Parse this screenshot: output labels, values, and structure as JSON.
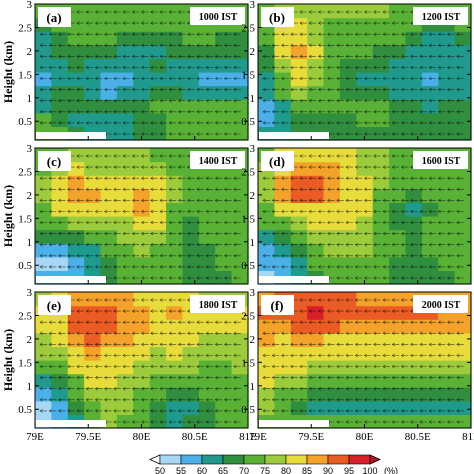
{
  "chart_data": [
    {
      "type": "heatmap",
      "panel": "(a)",
      "time": "1000 IST",
      "x_ticks": [
        "79E",
        "79.5E",
        "80E",
        "80.5E",
        "81E"
      ],
      "y_ticks": [
        "0.5",
        "1",
        "1.5",
        "2",
        "2.5",
        "3"
      ],
      "xlim": [
        79,
        81
      ],
      "ylim": [
        0.1,
        3
      ],
      "ylabel": "Height (km)",
      "rh_rows_bottom_to_top": [
        [
          70,
          70,
          68,
          62,
          60,
          62,
          66,
          68,
          70,
          72,
          72,
          70,
          70
        ],
        [
          70,
          68,
          64,
          62,
          60,
          62,
          66,
          68,
          70,
          72,
          72,
          70,
          70
        ],
        [
          64,
          66,
          68,
          68,
          66,
          66,
          68,
          70,
          72,
          70,
          70,
          72,
          72
        ],
        [
          60,
          66,
          66,
          62,
          58,
          60,
          64,
          66,
          66,
          64,
          62,
          60,
          60
        ],
        [
          58,
          62,
          64,
          60,
          58,
          58,
          60,
          60,
          60,
          60,
          58,
          58,
          58
        ],
        [
          60,
          64,
          66,
          62,
          62,
          62,
          64,
          66,
          64,
          62,
          60,
          60,
          60
        ],
        [
          62,
          66,
          68,
          68,
          66,
          64,
          64,
          64,
          66,
          68,
          68,
          66,
          66
        ],
        [
          62,
          66,
          70,
          70,
          70,
          68,
          66,
          66,
          68,
          70,
          70,
          68,
          68
        ],
        [
          66,
          70,
          72,
          72,
          72,
          70,
          70,
          70,
          72,
          72,
          72,
          72,
          72
        ],
        [
          70,
          72,
          74,
          74,
          74,
          72,
          72,
          72,
          74,
          74,
          74,
          74,
          74
        ]
      ]
    },
    {
      "type": "heatmap",
      "panel": "(b)",
      "time": "1200 IST",
      "x_ticks": [
        "79E",
        "79.5E",
        "80E",
        "80.5E",
        "81E"
      ],
      "y_ticks": [
        "0.5",
        "1",
        "1.5",
        "2",
        "2.5",
        "3"
      ],
      "xlim": [
        79,
        81
      ],
      "ylim": [
        0.1,
        3
      ],
      "ylabel": "",
      "rh_rows_bottom_to_top": [
        [
          62,
          64,
          66,
          66,
          66,
          68,
          68,
          68,
          66,
          68,
          68,
          66,
          66
        ],
        [
          58,
          62,
          66,
          68,
          68,
          68,
          70,
          70,
          68,
          68,
          66,
          68,
          68
        ],
        [
          58,
          64,
          70,
          72,
          72,
          70,
          70,
          70,
          68,
          66,
          64,
          66,
          66
        ],
        [
          62,
          70,
          76,
          74,
          70,
          68,
          66,
          66,
          64,
          62,
          62,
          62,
          64
        ],
        [
          64,
          74,
          80,
          76,
          70,
          66,
          64,
          64,
          62,
          60,
          58,
          60,
          62
        ],
        [
          66,
          78,
          84,
          78,
          72,
          68,
          68,
          66,
          64,
          62,
          60,
          62,
          64
        ],
        [
          68,
          80,
          86,
          80,
          74,
          70,
          70,
          68,
          66,
          64,
          62,
          62,
          64
        ],
        [
          70,
          80,
          84,
          78,
          74,
          72,
          72,
          72,
          70,
          66,
          64,
          64,
          66
        ],
        [
          72,
          80,
          82,
          76,
          74,
          74,
          74,
          74,
          72,
          70,
          68,
          68,
          70
        ],
        [
          74,
          78,
          78,
          76,
          76,
          76,
          76,
          76,
          74,
          72,
          72,
          72,
          72
        ]
      ]
    },
    {
      "type": "heatmap",
      "panel": "(c)",
      "time": "1400 IST",
      "x_ticks": [
        "79E",
        "79.5E",
        "80E",
        "80.5E",
        "81E"
      ],
      "y_ticks": [
        "0.5",
        "1",
        "1.5",
        "2",
        "2.5",
        "3"
      ],
      "xlim": [
        79,
        81
      ],
      "ylim": [
        0.1,
        3
      ],
      "ylabel": "Height (km)",
      "rh_rows_bottom_to_top": [
        [
          56,
          56,
          58,
          62,
          66,
          70,
          72,
          72,
          70,
          66,
          66,
          68,
          70
        ],
        [
          54,
          54,
          56,
          60,
          66,
          72,
          74,
          72,
          70,
          66,
          66,
          70,
          70
        ],
        [
          58,
          58,
          60,
          64,
          70,
          74,
          76,
          74,
          70,
          66,
          68,
          70,
          72
        ],
        [
          66,
          66,
          68,
          70,
          74,
          76,
          78,
          76,
          70,
          66,
          70,
          72,
          72
        ],
        [
          72,
          74,
          76,
          76,
          78,
          78,
          80,
          80,
          72,
          68,
          72,
          74,
          74
        ],
        [
          74,
          80,
          84,
          82,
          80,
          82,
          86,
          82,
          74,
          70,
          72,
          74,
          74
        ],
        [
          76,
          84,
          88,
          86,
          82,
          84,
          88,
          84,
          76,
          72,
          74,
          74,
          74
        ],
        [
          76,
          82,
          86,
          84,
          80,
          82,
          84,
          80,
          76,
          74,
          74,
          74,
          74
        ],
        [
          74,
          78,
          80,
          78,
          78,
          78,
          78,
          76,
          74,
          74,
          74,
          74,
          74
        ],
        [
          72,
          74,
          76,
          76,
          76,
          76,
          76,
          74,
          74,
          74,
          74,
          74,
          74
        ]
      ]
    },
    {
      "type": "heatmap",
      "panel": "(d)",
      "time": "1600 IST",
      "x_ticks": [
        "79E",
        "79.5E",
        "80E",
        "80.5E",
        "81E"
      ],
      "y_ticks": [
        "0.5",
        "1",
        "1.5",
        "2",
        "2.5",
        "3"
      ],
      "xlim": [
        79,
        81
      ],
      "ylim": [
        0.1,
        3
      ],
      "ylabel": "",
      "rh_rows_bottom_to_top": [
        [
          54,
          56,
          62,
          68,
          72,
          72,
          72,
          72,
          68,
          66,
          66,
          68,
          70
        ],
        [
          56,
          58,
          64,
          70,
          74,
          74,
          74,
          72,
          68,
          66,
          68,
          70,
          70
        ],
        [
          58,
          62,
          68,
          72,
          76,
          76,
          76,
          74,
          70,
          68,
          70,
          72,
          72
        ],
        [
          64,
          68,
          72,
          76,
          78,
          78,
          76,
          74,
          70,
          66,
          70,
          72,
          72
        ],
        [
          70,
          74,
          78,
          80,
          80,
          80,
          78,
          74,
          68,
          66,
          70,
          72,
          72
        ],
        [
          74,
          80,
          84,
          84,
          84,
          82,
          80,
          74,
          68,
          64,
          68,
          70,
          72
        ],
        [
          78,
          86,
          90,
          90,
          88,
          84,
          80,
          74,
          70,
          66,
          70,
          72,
          74
        ],
        [
          78,
          86,
          92,
          92,
          88,
          84,
          80,
          76,
          72,
          70,
          72,
          74,
          74
        ],
        [
          76,
          84,
          88,
          88,
          86,
          82,
          78,
          76,
          74,
          72,
          74,
          74,
          74
        ],
        [
          74,
          80,
          84,
          84,
          82,
          80,
          76,
          76,
          74,
          74,
          74,
          74,
          74
        ]
      ]
    },
    {
      "type": "heatmap",
      "panel": "(e)",
      "time": "1800 IST",
      "x_ticks": [
        "79E",
        "79.5E",
        "80E",
        "80.5E",
        "81E"
      ],
      "y_ticks": [
        "0.5",
        "1",
        "1.5",
        "2",
        "2.5",
        "3"
      ],
      "xlim": [
        79,
        81
      ],
      "ylim": [
        0.1,
        3
      ],
      "ylabel": "Height (km)",
      "rh_rows_bottom_to_top": [
        [
          52,
          56,
          64,
          72,
          76,
          74,
          70,
          66,
          64,
          66,
          68,
          70,
          70
        ],
        [
          54,
          58,
          66,
          74,
          78,
          76,
          72,
          66,
          60,
          64,
          68,
          70,
          70
        ],
        [
          56,
          60,
          70,
          78,
          78,
          76,
          72,
          70,
          68,
          68,
          70,
          70,
          72
        ],
        [
          62,
          66,
          74,
          80,
          80,
          78,
          76,
          74,
          74,
          72,
          72,
          72,
          74
        ],
        [
          70,
          72,
          80,
          84,
          82,
          80,
          78,
          76,
          76,
          76,
          74,
          74,
          76
        ],
        [
          76,
          78,
          84,
          86,
          84,
          82,
          80,
          78,
          80,
          78,
          76,
          76,
          78
        ],
        [
          78,
          80,
          88,
          90,
          88,
          86,
          84,
          82,
          82,
          80,
          78,
          78,
          78
        ],
        [
          80,
          84,
          90,
          92,
          92,
          88,
          86,
          84,
          84,
          82,
          80,
          80,
          80
        ],
        [
          80,
          84,
          90,
          94,
          92,
          88,
          86,
          84,
          86,
          84,
          82,
          80,
          80
        ],
        [
          78,
          82,
          86,
          88,
          88,
          86,
          84,
          82,
          82,
          80,
          78,
          78,
          78
        ]
      ]
    },
    {
      "type": "heatmap",
      "panel": "(f)",
      "time": "2000 IST",
      "x_ticks": [
        "79E",
        "79.5E",
        "80E",
        "80.5E",
        "81E"
      ],
      "y_ticks": [
        "0.5",
        "1",
        "1.5",
        "2",
        "2.5",
        "3"
      ],
      "xlim": [
        79,
        81
      ],
      "ylim": [
        0.1,
        3
      ],
      "ylabel": "",
      "rh_rows_bottom_to_top": [
        [
          74,
          72,
          70,
          70,
          70,
          70,
          70,
          70,
          70,
          70,
          70,
          70,
          70
        ],
        [
          76,
          72,
          66,
          64,
          62,
          62,
          62,
          62,
          62,
          64,
          64,
          64,
          64
        ],
        [
          78,
          74,
          70,
          68,
          66,
          66,
          66,
          66,
          66,
          66,
          66,
          66,
          66
        ],
        [
          80,
          78,
          76,
          74,
          74,
          74,
          74,
          74,
          74,
          74,
          74,
          74,
          74
        ],
        [
          82,
          80,
          80,
          78,
          78,
          78,
          78,
          78,
          78,
          78,
          78,
          78,
          78
        ],
        [
          84,
          82,
          82,
          82,
          80,
          80,
          80,
          80,
          80,
          80,
          80,
          80,
          80
        ],
        [
          86,
          84,
          86,
          86,
          84,
          84,
          82,
          82,
          82,
          82,
          82,
          82,
          82
        ],
        [
          88,
          88,
          90,
          92,
          90,
          88,
          86,
          86,
          86,
          86,
          86,
          86,
          86
        ],
        [
          90,
          92,
          94,
          96,
          94,
          92,
          90,
          90,
          90,
          90,
          90,
          88,
          88
        ],
        [
          88,
          90,
          92,
          94,
          92,
          90,
          88,
          88,
          88,
          88,
          88,
          88,
          88
        ]
      ]
    }
  ],
  "colorbar": {
    "levels": [
      50,
      55,
      60,
      65,
      70,
      75,
      80,
      85,
      90,
      95,
      100
    ],
    "colors": [
      "#a6d8f5",
      "#4bb0e8",
      "#1f9a8c",
      "#2f8f3e",
      "#59b235",
      "#9ccc3c",
      "#e8dc3a",
      "#f4a22a",
      "#eb5b24",
      "#d8202a",
      "#b0152a"
    ],
    "unit": "(%)",
    "tick_labels": [
      "50",
      "55",
      "60",
      "65",
      "70",
      "75",
      "80",
      "85",
      "90",
      "95",
      "100"
    ]
  }
}
